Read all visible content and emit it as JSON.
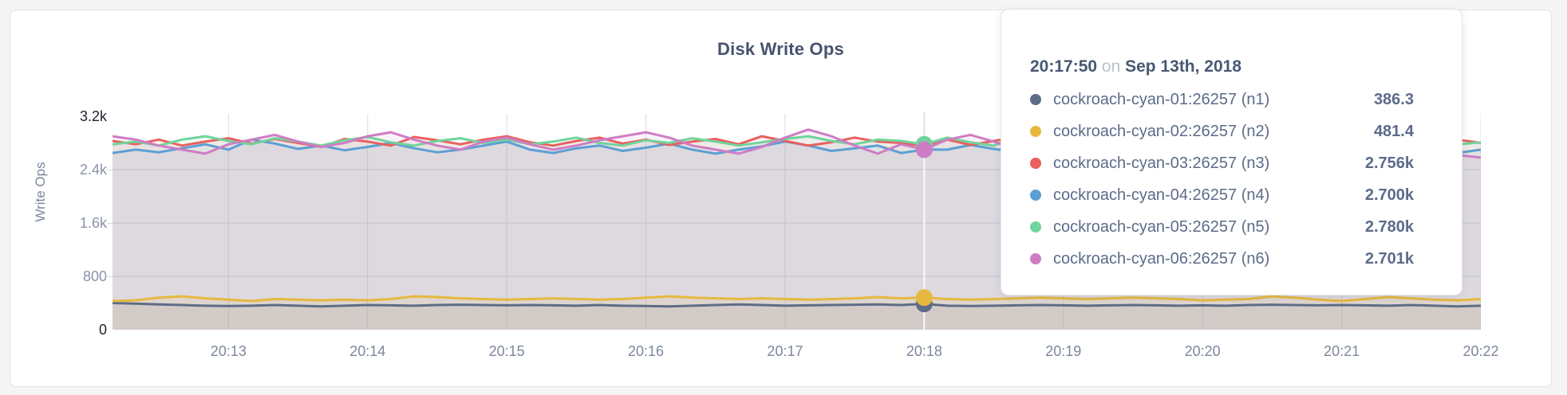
{
  "chart": {
    "title": "Disk Write Ops",
    "y_axis": {
      "title": "Write Ops",
      "ticks": [
        {
          "label": "3.2k",
          "value": 3200,
          "emphasis": true
        },
        {
          "label": "2.4k",
          "value": 2400,
          "emphasis": false
        },
        {
          "label": "1.6k",
          "value": 1600,
          "emphasis": false
        },
        {
          "label": "800",
          "value": 800,
          "emphasis": false
        },
        {
          "label": "0",
          "value": 0,
          "emphasis": true
        }
      ]
    },
    "x_axis": {
      "ticks": [
        "20:13",
        "20:14",
        "20:15",
        "20:16",
        "20:17",
        "20:18",
        "20:19",
        "20:20",
        "20:21",
        "20:22"
      ]
    }
  },
  "tooltip": {
    "time": "20:17:50",
    "on_word": "on",
    "date": "Sep 13th, 2018",
    "rows": [
      {
        "name": "cockroach-cyan-01:26257 (n1)",
        "value": "386.3",
        "color": "#5f6c87"
      },
      {
        "name": "cockroach-cyan-02:26257 (n2)",
        "value": "481.4",
        "color": "#e7b83f"
      },
      {
        "name": "cockroach-cyan-03:26257 (n3)",
        "value": "2.756k",
        "color": "#e8605f"
      },
      {
        "name": "cockroach-cyan-04:26257 (n4)",
        "value": "2.700k",
        "color": "#5c9fd4"
      },
      {
        "name": "cockroach-cyan-05:26257 (n5)",
        "value": "2.780k",
        "color": "#70d49b"
      },
      {
        "name": "cockroach-cyan-06:26257 (n6)",
        "value": "2.701k",
        "color": "#ce7dc4"
      }
    ]
  },
  "chart_data": {
    "type": "line",
    "title": "Disk Write Ops",
    "xlabel": "",
    "ylabel": "Write Ops",
    "ylim": [
      0,
      3200
    ],
    "grid": true,
    "legend_position": "tooltip",
    "x_tick_labels": [
      "20:13",
      "20:14",
      "20:15",
      "20:16",
      "20:17",
      "20:18",
      "20:19",
      "20:20",
      "20:21",
      "20:22"
    ],
    "x_first_tick_index": 5,
    "x_indices_per_tick": 6,
    "x_seconds_per_point": 10,
    "hover_index": 35,
    "hover_time": "20:17:50 on Sep 13th, 2018",
    "series": [
      {
        "name": "cockroach-cyan-01:26257 (n1)",
        "color": "#5f6c87",
        "hover_value": 386.3,
        "values": [
          400,
          390,
          380,
          370,
          360,
          355,
          360,
          370,
          360,
          350,
          360,
          370,
          365,
          360,
          370,
          375,
          370,
          365,
          370,
          365,
          360,
          370,
          360,
          355,
          350,
          360,
          370,
          380,
          370,
          360,
          365,
          370,
          375,
          380,
          370,
          386.3,
          360,
          355,
          360,
          365,
          370,
          365,
          360,
          365,
          370,
          365,
          360,
          365,
          360,
          370,
          375,
          370,
          365,
          370,
          365,
          360,
          370,
          360,
          350,
          360
        ]
      },
      {
        "name": "cockroach-cyan-02:26257 (n2)",
        "color": "#e7b83f",
        "hover_value": 481.4,
        "values": [
          430,
          440,
          480,
          500,
          470,
          450,
          430,
          460,
          450,
          440,
          450,
          440,
          460,
          500,
          490,
          470,
          460,
          450,
          460,
          470,
          460,
          450,
          460,
          480,
          500,
          480,
          470,
          460,
          470,
          460,
          450,
          460,
          470,
          490,
          470,
          481.4,
          460,
          450,
          460,
          470,
          480,
          470,
          460,
          470,
          480,
          470,
          460,
          440,
          450,
          460,
          500,
          480,
          450,
          430,
          460,
          490,
          470,
          450,
          440,
          460
        ]
      },
      {
        "name": "cockroach-cyan-03:26257 (n3)",
        "color": "#e8605f",
        "hover_value": 2756,
        "values": [
          2830,
          2780,
          2850,
          2760,
          2820,
          2870,
          2790,
          2860,
          2800,
          2740,
          2860,
          2820,
          2760,
          2890,
          2840,
          2780,
          2850,
          2900,
          2810,
          2760,
          2830,
          2880,
          2790,
          2850,
          2770,
          2820,
          2860,
          2780,
          2900,
          2830,
          2760,
          2810,
          2880,
          2820,
          2800,
          2756,
          2850,
          2770,
          2830,
          2890,
          2800,
          2760,
          2840,
          2810,
          2870,
          2790,
          2850,
          2800,
          2740,
          2820,
          2860,
          2780,
          2830,
          2870,
          2800,
          2750,
          2820,
          2780,
          2850,
          2800
        ]
      },
      {
        "name": "cockroach-cyan-04:26257 (n4)",
        "color": "#5c9fd4",
        "hover_value": 2700,
        "values": [
          2650,
          2700,
          2660,
          2720,
          2780,
          2700,
          2850,
          2790,
          2710,
          2760,
          2690,
          2740,
          2800,
          2720,
          2660,
          2700,
          2760,
          2820,
          2700,
          2650,
          2720,
          2760,
          2680,
          2730,
          2790,
          2700,
          2640,
          2700,
          2750,
          2820,
          2760,
          2680,
          2720,
          2760,
          2650,
          2700,
          2700,
          2770,
          2710,
          2660,
          2720,
          2780,
          2840,
          2760,
          2700,
          2740,
          2700,
          2660,
          2720,
          2690,
          2750,
          2800,
          2720,
          2680,
          2740,
          2700,
          2760,
          2720,
          2650,
          2700
        ]
      },
      {
        "name": "cockroach-cyan-05:26257 (n5)",
        "color": "#70d49b",
        "hover_value": 2780,
        "values": [
          2780,
          2820,
          2760,
          2850,
          2900,
          2830,
          2780,
          2870,
          2820,
          2760,
          2840,
          2890,
          2810,
          2760,
          2830,
          2870,
          2800,
          2850,
          2780,
          2820,
          2880,
          2800,
          2760,
          2840,
          2800,
          2870,
          2820,
          2760,
          2810,
          2860,
          2900,
          2830,
          2780,
          2850,
          2830,
          2780,
          2880,
          2810,
          2760,
          2900,
          2850,
          2780,
          2830,
          2790,
          2860,
          2820,
          2770,
          2840,
          2800,
          2760,
          2830,
          2870,
          2800,
          2850,
          2780,
          2820,
          2870,
          2830,
          2780,
          2810
        ]
      },
      {
        "name": "cockroach-cyan-06:26257 (n6)",
        "color": "#ce7dc4",
        "hover_value": 2701,
        "values": [
          2900,
          2850,
          2760,
          2700,
          2640,
          2780,
          2850,
          2920,
          2820,
          2740,
          2800,
          2900,
          2960,
          2850,
          2760,
          2700,
          2820,
          2880,
          2780,
          2700,
          2760,
          2840,
          2900,
          2960,
          2880,
          2760,
          2700,
          2640,
          2740,
          2880,
          3000,
          2900,
          2760,
          2640,
          2780,
          2701,
          2850,
          2920,
          2820,
          2700,
          2640,
          2720,
          2800,
          2900,
          3010,
          2880,
          2740,
          2680,
          2760,
          2700,
          2640,
          2720,
          2800,
          2760,
          2700,
          2960,
          2870,
          2700,
          2620,
          2580
        ]
      }
    ]
  }
}
